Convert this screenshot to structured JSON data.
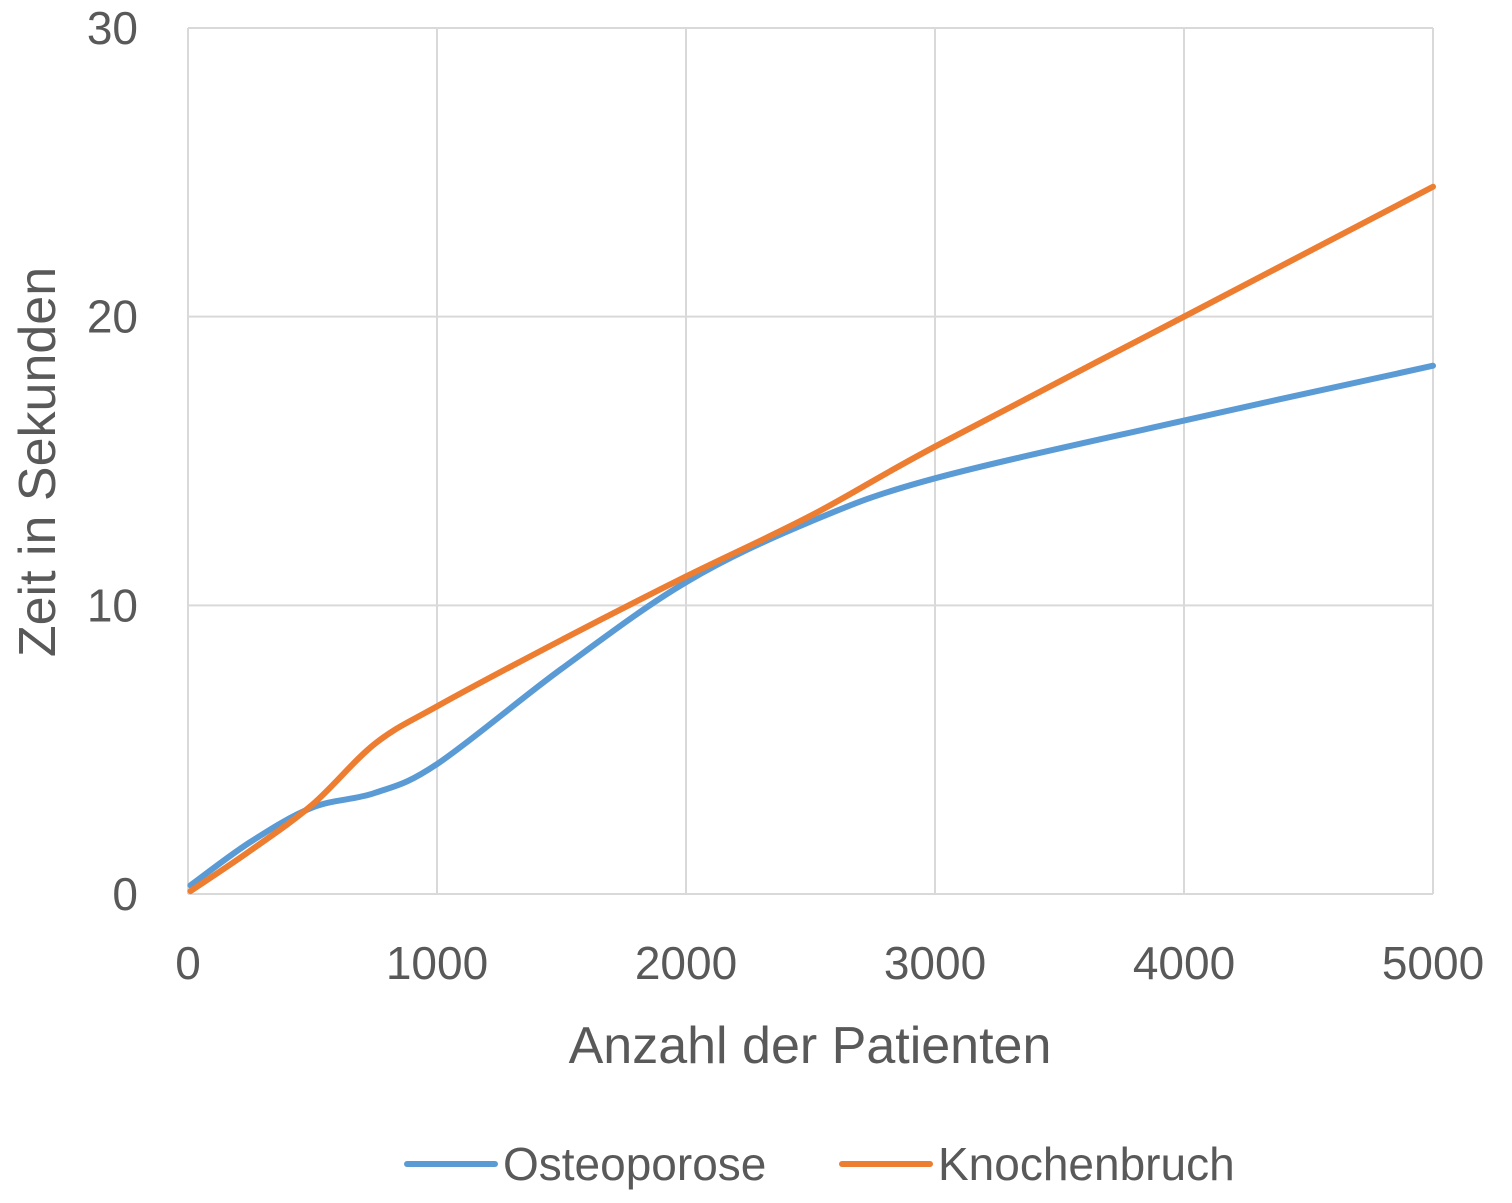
{
  "chart_data": {
    "type": "line",
    "title": "",
    "xlabel": "Anzahl der Patienten",
    "ylabel": "Zeit in Sekunden",
    "xlim": [
      0,
      5000
    ],
    "ylim": [
      0,
      30
    ],
    "x_ticks": [
      0,
      1000,
      2000,
      3000,
      4000,
      5000
    ],
    "y_ticks": [
      0,
      10,
      20,
      30
    ],
    "grid": true,
    "legend_position": "bottom",
    "series": [
      {
        "name": "Osteoporose",
        "color": "#5b9bd5",
        "x": [
          10,
          250,
          500,
          750,
          1000,
          1500,
          2000,
          2500,
          3000,
          4000,
          5000
        ],
        "y": [
          0.3,
          1.8,
          3.0,
          3.5,
          4.5,
          7.8,
          10.8,
          12.9,
          14.4,
          16.4,
          18.3
        ]
      },
      {
        "name": "Knochenbruch",
        "color": "#ed7d31",
        "x": [
          10,
          250,
          500,
          750,
          1000,
          1500,
          2000,
          2500,
          3000,
          4000,
          5000
        ],
        "y": [
          0.1,
          1.5,
          3.1,
          5.2,
          6.5,
          8.8,
          11.0,
          13.1,
          15.5,
          20.0,
          24.5
        ]
      }
    ]
  }
}
